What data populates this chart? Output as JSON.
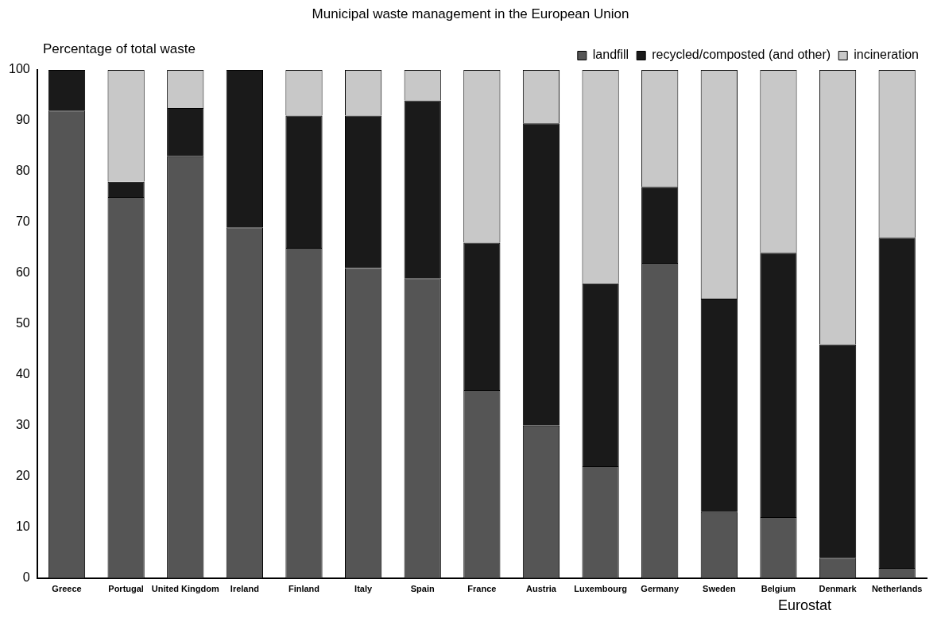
{
  "chart_data": {
    "type": "bar",
    "title": "Municipal waste management in the European Union",
    "ylabel": "Percentage of total waste",
    "stacked": true,
    "categories": [
      "Greece",
      "Portugal",
      "United Kingdom",
      "Ireland",
      "Finland",
      "Italy",
      "Spain",
      "France",
      "Austria",
      "Luxembourg",
      "Germany",
      "Sweden",
      "Belgium",
      "Denmark",
      "Netherlands"
    ],
    "series": [
      {
        "name": "landfill",
        "color": "#555555",
        "values": [
          92,
          75,
          83,
          69,
          65,
          61,
          59,
          37,
          30,
          22,
          62,
          13,
          12,
          4,
          2
        ]
      },
      {
        "name": "recycled/composted (and other)",
        "color": "#1a1a1a",
        "values": [
          8,
          3,
          9.5,
          31,
          26,
          30,
          35,
          29,
          59.5,
          36,
          15,
          42,
          52,
          42,
          65
        ]
      },
      {
        "name": "incineration",
        "color": "#c8c8c8",
        "values": [
          0,
          22,
          7.5,
          0,
          9,
          9,
          6,
          34,
          10.5,
          42,
          23,
          45,
          36,
          54,
          33
        ]
      }
    ],
    "ylim": [
      0,
      100
    ],
    "yticks": [
      0,
      10,
      20,
      30,
      40,
      50,
      60,
      70,
      80,
      90,
      100
    ],
    "grid": false,
    "legend": "top right",
    "annotations": [
      "Eurostat"
    ]
  }
}
